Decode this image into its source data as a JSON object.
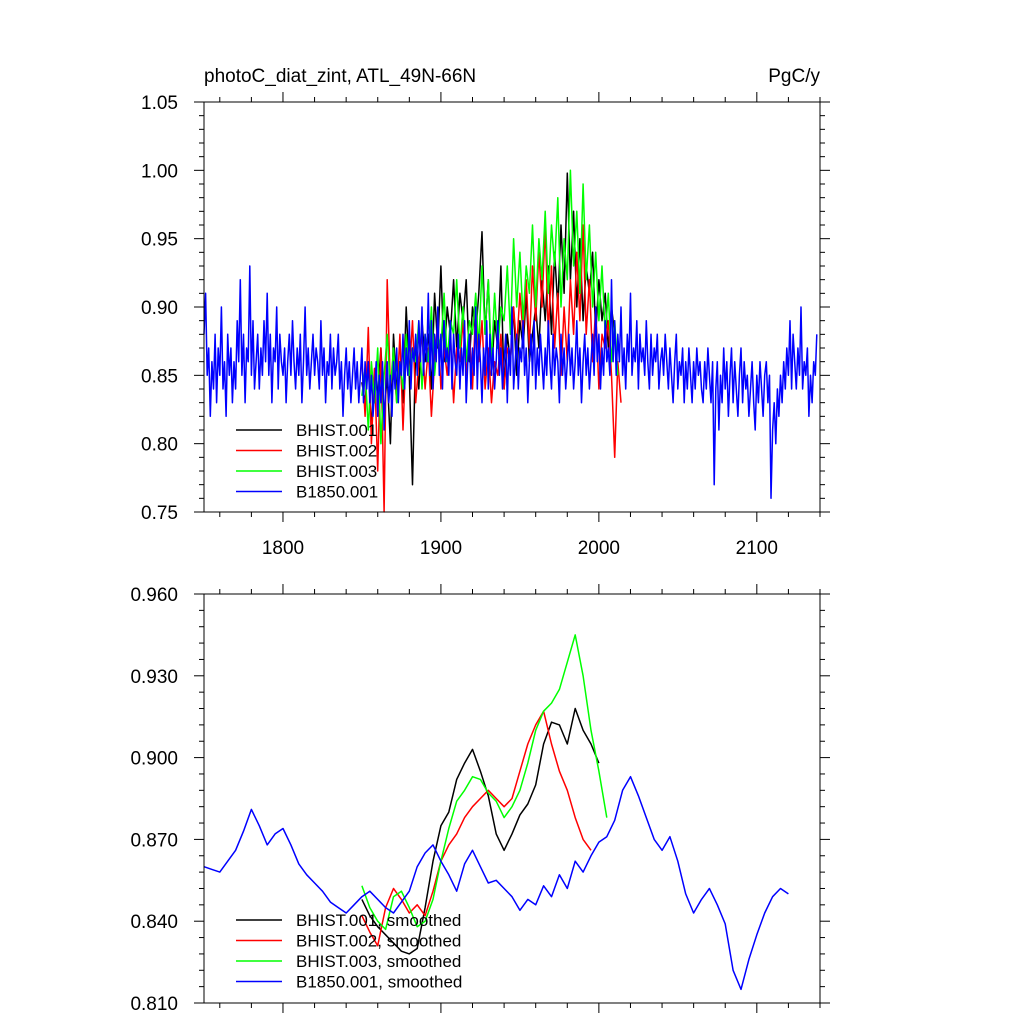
{
  "figure": {
    "background": "#ffffff"
  },
  "chart_data": [
    {
      "type": "line",
      "title": "photoC_diat_zint, ATL_49N-66N",
      "units": "PgC/y",
      "xlim": [
        1750,
        2140
      ],
      "ylim": [
        0.75,
        1.05
      ],
      "x_ticks": [
        1800,
        1900,
        2000,
        2100
      ],
      "x_tick_labels": [
        "1800",
        "1900",
        "2000",
        "2100"
      ],
      "y_ticks": [
        0.75,
        0.8,
        0.85,
        0.9,
        0.95,
        1.0,
        1.05
      ],
      "y_tick_labels": [
        "0.75",
        "0.80",
        "0.85",
        "0.90",
        "0.95",
        "1.00",
        "1.05"
      ],
      "grid": false,
      "legend": {
        "position": "bottom-left"
      },
      "series": [
        {
          "name": "BHIST.001",
          "color": "#000000",
          "x_start": 1850,
          "x_step": 2,
          "values": [
            0.845,
            0.83,
            0.86,
            0.81,
            0.855,
            0.835,
            0.87,
            0.82,
            0.85,
            0.8,
            0.88,
            0.84,
            0.86,
            0.83,
            0.9,
            0.85,
            0.77,
            0.87,
            0.84,
            0.89,
            0.86,
            0.88,
            0.84,
            0.91,
            0.87,
            0.93,
            0.86,
            0.9,
            0.88,
            0.92,
            0.87,
            0.91,
            0.89,
            0.92,
            0.86,
            0.9,
            0.88,
            0.91,
            0.955,
            0.88,
            0.92,
            0.85,
            0.89,
            0.87,
            0.93,
            0.84,
            0.88,
            0.86,
            0.9,
            0.85,
            0.89,
            0.87,
            0.91,
            0.86,
            0.88,
            0.9,
            0.87,
            0.92,
            0.89,
            0.93,
            0.88,
            0.94,
            0.9,
            0.96,
            0.91,
            0.998,
            0.92,
            0.97,
            0.9,
            0.95,
            0.89,
            0.93,
            0.91,
            0.94,
            0.88,
            0.92,
            0.89,
            0.91,
            0.87,
            0.9,
            0.88
          ]
        },
        {
          "name": "BHIST.002",
          "color": "#ff0000",
          "x_start": 1850,
          "x_step": 2,
          "values": [
            0.86,
            0.82,
            0.885,
            0.8,
            0.855,
            0.78,
            0.87,
            0.75,
            0.92,
            0.84,
            0.86,
            0.83,
            0.88,
            0.81,
            0.87,
            0.85,
            0.89,
            0.83,
            0.86,
            0.88,
            0.84,
            0.87,
            0.82,
            0.86,
            0.89,
            0.84,
            0.87,
            0.85,
            0.88,
            0.83,
            0.87,
            0.86,
            0.89,
            0.85,
            0.88,
            0.84,
            0.9,
            0.86,
            0.89,
            0.84,
            0.87,
            0.83,
            0.86,
            0.85,
            0.88,
            0.84,
            0.87,
            0.86,
            0.9,
            0.87,
            0.91,
            0.88,
            0.92,
            0.87,
            0.93,
            0.89,
            0.94,
            0.9,
            0.96,
            0.88,
            0.93,
            0.87,
            0.91,
            0.85,
            0.9,
            0.86,
            0.92,
            0.88,
            0.94,
            0.89,
            0.96,
            0.88,
            0.92,
            0.86,
            0.9,
            0.84,
            0.88,
            0.87,
            0.89,
            0.85,
            0.79,
            0.86,
            0.83
          ]
        },
        {
          "name": "BHIST.003",
          "color": "#00ff00",
          "x_start": 1850,
          "x_step": 2,
          "values": [
            0.835,
            0.855,
            0.81,
            0.86,
            0.83,
            0.87,
            0.8,
            0.85,
            0.88,
            0.84,
            0.87,
            0.83,
            0.86,
            0.84,
            0.88,
            0.85,
            0.87,
            0.86,
            0.89,
            0.84,
            0.88,
            0.86,
            0.9,
            0.85,
            0.88,
            0.87,
            0.91,
            0.86,
            0.89,
            0.88,
            0.92,
            0.87,
            0.9,
            0.86,
            0.89,
            0.88,
            0.91,
            0.87,
            0.93,
            0.88,
            0.92,
            0.86,
            0.91,
            0.87,
            0.9,
            0.89,
            0.93,
            0.88,
            0.95,
            0.9,
            0.94,
            0.89,
            0.93,
            0.91,
            0.96,
            0.9,
            0.95,
            0.92,
            0.97,
            0.91,
            0.96,
            0.93,
            0.98,
            0.9,
            0.95,
            0.92,
            1.0,
            0.93,
            0.97,
            0.91,
            0.99,
            0.92,
            0.96,
            0.9,
            0.94,
            0.89,
            0.93,
            0.88,
            0.91,
            0.86,
            0.89,
            0.85
          ]
        },
        {
          "name": "B1850.001",
          "color": "#0000ff",
          "x_start": 1750,
          "x_step": 1,
          "values": [
            0.88,
            0.91,
            0.85,
            0.87,
            0.82,
            0.86,
            0.84,
            0.88,
            0.83,
            0.87,
            0.85,
            0.9,
            0.84,
            0.86,
            0.82,
            0.88,
            0.85,
            0.87,
            0.83,
            0.86,
            0.84,
            0.89,
            0.86,
            0.92,
            0.85,
            0.88,
            0.83,
            0.87,
            0.86,
            0.93,
            0.85,
            0.89,
            0.84,
            0.86,
            0.88,
            0.84,
            0.87,
            0.85,
            0.89,
            0.86,
            0.91,
            0.85,
            0.88,
            0.83,
            0.87,
            0.86,
            0.9,
            0.84,
            0.88,
            0.86,
            0.85,
            0.87,
            0.83,
            0.86,
            0.88,
            0.85,
            0.89,
            0.86,
            0.84,
            0.87,
            0.85,
            0.88,
            0.83,
            0.86,
            0.9,
            0.85,
            0.87,
            0.84,
            0.86,
            0.88,
            0.85,
            0.87,
            0.86,
            0.84,
            0.89,
            0.85,
            0.87,
            0.83,
            0.86,
            0.85,
            0.88,
            0.84,
            0.87,
            0.85,
            0.86,
            0.88,
            0.84,
            0.86,
            0.82,
            0.85,
            0.87,
            0.84,
            0.86,
            0.83,
            0.85,
            0.87,
            0.84,
            0.86,
            0.83,
            0.85,
            0.87,
            0.83,
            0.86,
            0.84,
            0.86,
            0.83,
            0.85,
            0.82,
            0.84,
            0.86,
            0.82,
            0.85,
            0.83,
            0.86,
            0.81,
            0.84,
            0.86,
            0.83,
            0.85,
            0.82,
            0.86,
            0.84,
            0.87,
            0.83,
            0.86,
            0.85,
            0.88,
            0.84,
            0.87,
            0.85,
            0.89,
            0.84,
            0.87,
            0.86,
            0.88,
            0.85,
            0.89,
            0.86,
            0.9,
            0.85,
            0.88,
            0.86,
            0.91,
            0.85,
            0.89,
            0.84,
            0.88,
            0.86,
            0.9,
            0.85,
            0.88,
            0.84,
            0.89,
            0.86,
            0.87,
            0.85,
            0.89,
            0.84,
            0.88,
            0.86,
            0.85,
            0.88,
            0.84,
            0.87,
            0.85,
            0.89,
            0.83,
            0.86,
            0.88,
            0.84,
            0.87,
            0.85,
            0.9,
            0.84,
            0.88,
            0.86,
            0.83,
            0.87,
            0.85,
            0.89,
            0.84,
            0.88,
            0.85,
            0.87,
            0.84,
            0.86,
            0.89,
            0.85,
            0.87,
            0.84,
            0.86,
            0.88,
            0.83,
            0.87,
            0.85,
            0.9,
            0.84,
            0.86,
            0.88,
            0.84,
            0.87,
            0.86,
            0.89,
            0.85,
            0.87,
            0.83,
            0.86,
            0.88,
            0.85,
            0.89,
            0.84,
            0.87,
            0.85,
            0.88,
            0.86,
            0.84,
            0.87,
            0.85,
            0.89,
            0.86,
            0.84,
            0.88,
            0.85,
            0.87,
            0.86,
            0.83,
            0.88,
            0.85,
            0.87,
            0.84,
            0.86,
            0.88,
            0.85,
            0.87,
            0.84,
            0.86,
            0.89,
            0.85,
            0.87,
            0.83,
            0.86,
            0.88,
            0.85,
            0.87,
            0.84,
            0.86,
            0.88,
            0.85,
            0.9,
            0.86,
            0.88,
            0.84,
            0.87,
            0.85,
            0.89,
            0.86,
            0.87,
            0.85,
            0.92,
            0.86,
            0.89,
            0.85,
            0.88,
            0.86,
            0.9,
            0.85,
            0.87,
            0.84,
            0.88,
            0.86,
            0.91,
            0.85,
            0.87,
            0.86,
            0.89,
            0.84,
            0.88,
            0.86,
            0.87,
            0.85,
            0.89,
            0.86,
            0.84,
            0.88,
            0.85,
            0.87,
            0.86,
            0.88,
            0.84,
            0.86,
            0.87,
            0.85,
            0.88,
            0.86,
            0.84,
            0.87,
            0.85,
            0.83,
            0.86,
            0.88,
            0.84,
            0.86,
            0.85,
            0.87,
            0.83,
            0.86,
            0.84,
            0.87,
            0.85,
            0.83,
            0.86,
            0.84,
            0.87,
            0.85,
            0.86,
            0.84,
            0.83,
            0.86,
            0.84,
            0.87,
            0.85,
            0.83,
            0.86,
            0.77,
            0.84,
            0.86,
            0.81,
            0.85,
            0.83,
            0.87,
            0.84,
            0.86,
            0.82,
            0.85,
            0.87,
            0.83,
            0.86,
            0.84,
            0.82,
            0.85,
            0.87,
            0.83,
            0.86,
            0.84,
            0.85,
            0.82,
            0.84,
            0.86,
            0.83,
            0.81,
            0.85,
            0.83,
            0.86,
            0.84,
            0.82,
            0.85,
            0.86,
            0.83,
            0.85,
            0.76,
            0.81,
            0.83,
            0.8,
            0.84,
            0.82,
            0.85,
            0.83,
            0.86,
            0.84,
            0.87,
            0.85,
            0.89,
            0.84,
            0.88,
            0.86,
            0.84,
            0.87,
            0.85,
            0.9,
            0.84,
            0.86,
            0.85,
            0.87,
            0.82,
            0.85,
            0.83,
            0.86,
            0.85,
            0.88
          ]
        }
      ]
    },
    {
      "type": "line",
      "xlim": [
        1750,
        2140
      ],
      "ylim": [
        0.81,
        0.96
      ],
      "x_ticks": [
        1800,
        1900,
        2000,
        2100
      ],
      "y_ticks": [
        0.81,
        0.84,
        0.87,
        0.9,
        0.93,
        0.96
      ],
      "y_tick_labels": [
        "0.810",
        "0.840",
        "0.870",
        "0.900",
        "0.930",
        "0.960"
      ],
      "grid": false,
      "legend": {
        "position": "bottom-left"
      },
      "series": [
        {
          "name": "BHIST.001, smoothed",
          "color": "#000000",
          "x_start": 1850,
          "x_step": 5,
          "values": [
            0.848,
            0.842,
            0.838,
            0.835,
            0.832,
            0.829,
            0.828,
            0.83,
            0.845,
            0.862,
            0.875,
            0.88,
            0.892,
            0.898,
            0.903,
            0.895,
            0.886,
            0.872,
            0.866,
            0.872,
            0.879,
            0.883,
            0.89,
            0.905,
            0.913,
            0.912,
            0.905,
            0.918,
            0.91,
            0.905,
            0.898
          ]
        },
        {
          "name": "BHIST.002, smoothed",
          "color": "#ff0000",
          "x_start": 1850,
          "x_step": 5,
          "values": [
            0.842,
            0.836,
            0.831,
            0.845,
            0.852,
            0.848,
            0.843,
            0.846,
            0.842,
            0.851,
            0.862,
            0.868,
            0.872,
            0.878,
            0.882,
            0.885,
            0.888,
            0.885,
            0.882,
            0.885,
            0.895,
            0.905,
            0.912,
            0.917,
            0.905,
            0.895,
            0.888,
            0.878,
            0.87,
            0.866
          ]
        },
        {
          "name": "BHIST.003, smoothed",
          "color": "#00ff00",
          "x_start": 1850,
          "x_step": 5,
          "values": [
            0.853,
            0.845,
            0.84,
            0.837,
            0.849,
            0.851,
            0.845,
            0.838,
            0.84,
            0.848,
            0.862,
            0.874,
            0.884,
            0.888,
            0.893,
            0.892,
            0.887,
            0.884,
            0.878,
            0.882,
            0.888,
            0.898,
            0.91,
            0.917,
            0.92,
            0.925,
            0.935,
            0.945,
            0.93,
            0.91,
            0.895,
            0.878
          ]
        },
        {
          "name": "B1850.001, smoothed",
          "color": "#0000ff",
          "x_start": 1750,
          "x_step": 5,
          "values": [
            0.86,
            0.859,
            0.858,
            0.862,
            0.866,
            0.873,
            0.881,
            0.875,
            0.868,
            0.872,
            0.874,
            0.868,
            0.861,
            0.857,
            0.854,
            0.851,
            0.847,
            0.845,
            0.843,
            0.846,
            0.849,
            0.851,
            0.848,
            0.845,
            0.843,
            0.847,
            0.851,
            0.86,
            0.865,
            0.868,
            0.862,
            0.857,
            0.851,
            0.861,
            0.866,
            0.86,
            0.854,
            0.855,
            0.852,
            0.849,
            0.844,
            0.848,
            0.846,
            0.853,
            0.849,
            0.857,
            0.852,
            0.862,
            0.858,
            0.864,
            0.869,
            0.871,
            0.877,
            0.888,
            0.893,
            0.886,
            0.878,
            0.87,
            0.866,
            0.871,
            0.862,
            0.85,
            0.843,
            0.848,
            0.852,
            0.846,
            0.839,
            0.822,
            0.815,
            0.826,
            0.835,
            0.843,
            0.849,
            0.852,
            0.85
          ]
        }
      ]
    }
  ]
}
